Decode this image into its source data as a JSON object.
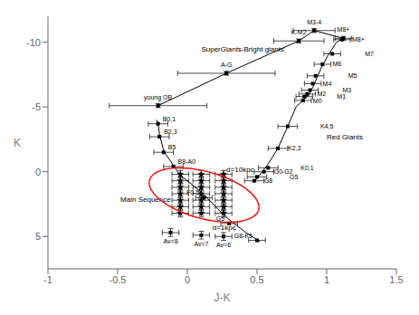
{
  "chart_data": {
    "type": "scatter",
    "xlabel": "J-K",
    "ylabel": "K",
    "xlim": [
      -1,
      1.5
    ],
    "xticks": [
      -1,
      -0.5,
      0,
      0.5,
      1,
      1.5
    ],
    "ylim": [
      7.5,
      -12
    ],
    "yticks": [
      5,
      0,
      -5,
      -10
    ],
    "grid": false,
    "series": [
      {
        "type": "line",
        "color": "#000000",
        "line_style": "solid",
        "x": [
          -0.22,
          -0.21,
          -0.2,
          -0.17,
          -0.1,
          -0.05,
          0.0,
          0.08,
          0.15,
          0.22,
          0.3,
          0.42,
          0.52
        ],
        "values": [
          -4.0,
          -3.7,
          -2.9,
          -1.6,
          -0.5,
          0.3,
          0.7,
          1.4,
          2.1,
          2.9,
          3.7,
          4.7,
          5.4
        ]
      },
      {
        "type": "line",
        "color": "#000000",
        "line_style": "solid",
        "x": [
          0.48,
          0.5,
          0.53,
          0.58,
          0.65,
          0.72,
          0.78,
          0.83,
          0.86,
          0.88,
          0.9,
          0.92,
          0.96,
          1.01,
          1.07,
          1.12
        ],
        "values": [
          0.8,
          0.5,
          0.1,
          -0.6,
          -1.8,
          -3.5,
          -5.0,
          -5.5,
          -5.8,
          -6.1,
          -6.5,
          -7.0,
          -8.0,
          -9.0,
          -10.0,
          -10.3
        ]
      },
      {
        "type": "line",
        "color": "#000000",
        "line_style": "solid",
        "x": [
          -0.21,
          0.28,
          0.8,
          0.91,
          1.12
        ],
        "values": [
          -5.1,
          -7.6,
          -10.1,
          -10.9,
          -10.3
        ]
      },
      {
        "type": "scatter",
        "marker": "square",
        "color": "#000000",
        "x": [
          -0.21,
          -0.2,
          -0.17,
          -0.1,
          0.12,
          0.3,
          0.5
        ],
        "values": [
          -3.7,
          -2.7,
          -1.5,
          -0.4,
          2.0,
          4.0,
          5.3
        ],
        "labels": [
          "B0,1",
          "B2,3",
          "B5",
          "B8-A0",
          "F0-5",
          "G5",
          "G8-K5"
        ],
        "xerr": [
          0.07,
          0.07,
          0.07,
          0.07,
          0.06,
          0.06,
          0.06
        ]
      },
      {
        "type": "scatter",
        "marker": "square",
        "color": "#000000",
        "x": [
          0.48,
          0.5,
          0.55,
          0.58,
          0.65,
          0.72,
          0.83,
          0.84,
          0.86,
          0.88,
          0.9,
          0.92,
          0.97,
          1.04,
          1.11
        ],
        "values": [
          0.7,
          0.4,
          0.0,
          -0.3,
          -1.8,
          -3.5,
          -5.5,
          -5.8,
          -6.0,
          -6.3,
          -6.8,
          -7.4,
          -8.3,
          -9.1,
          -10.2
        ],
        "labels": [
          "G8",
          "G5",
          "G0-G2",
          "K0,1",
          "K2,3",
          "K4,5",
          "M0",
          "M1",
          "M2",
          "M3",
          "M4",
          "M5",
          "M6",
          "M7",
          "M8+"
        ],
        "xerr": [
          0.07,
          0.07,
          0.07,
          0.07,
          0.07,
          0.07,
          0.06,
          0.06,
          0.06,
          0.06,
          0.06,
          0.06,
          0.06,
          0.06,
          0.06
        ]
      },
      {
        "type": "scatter",
        "marker": "square",
        "color": "#000000",
        "x": [
          -0.21,
          0.28,
          0.8,
          0.91,
          1.12
        ],
        "values": [
          -5.1,
          -7.6,
          -10.1,
          -10.9,
          -10.3
        ],
        "labels": [
          "young OB",
          "A-G",
          "K-M2",
          "M3-4",
          "M8+"
        ],
        "xerr": [
          0.35,
          0.35,
          0.18,
          0.15,
          0.06
        ],
        "yerr": 0.15
      },
      {
        "type": "scatter",
        "marker": "star",
        "color": "#000000",
        "x": [
          -0.05,
          -0.05,
          -0.05,
          -0.05,
          -0.05,
          -0.05,
          -0.05,
          0.1,
          0.1,
          0.1,
          0.1,
          0.1,
          0.1,
          0.1,
          0.26,
          0.26,
          0.26,
          0.26,
          0.26,
          0.26,
          0.26
        ],
        "values": [
          0.2,
          0.7,
          1.2,
          1.7,
          2.2,
          2.7,
          3.2,
          0.2,
          0.7,
          1.2,
          1.7,
          2.2,
          2.7,
          3.2,
          0.2,
          0.7,
          1.2,
          1.7,
          2.2,
          2.7,
          3.2
        ],
        "xerr": 0.06,
        "yerr": 0.3
      },
      {
        "type": "scatter",
        "marker": "square",
        "color": "#000000",
        "x": [
          -0.12,
          0.1,
          0.26
        ],
        "values": [
          4.7,
          4.9,
          5.0
        ],
        "labels": [
          "Av=8",
          "Av=7",
          "Av=6"
        ],
        "xerr": 0.06,
        "yerr": 0.3
      }
    ],
    "annotations": [
      {
        "x": 0.28,
        "y": 0.0,
        "text": "d=10kpc"
      },
      {
        "x": 0.18,
        "y": 4.5,
        "text": "d=1kpc"
      },
      {
        "x": 0.1,
        "y": -9.3,
        "text": "SuperGiants-Bright giants"
      },
      {
        "x": -0.48,
        "y": 2.3,
        "text": "Main Sequence"
      },
      {
        "x": 1.0,
        "y": -2.5,
        "text": "Red Giants"
      }
    ],
    "ellipse": {
      "cx": 0.12,
      "cy": 1.8,
      "width": 0.7,
      "height": 4.2,
      "angle": -5,
      "color": "#ff0000"
    }
  }
}
